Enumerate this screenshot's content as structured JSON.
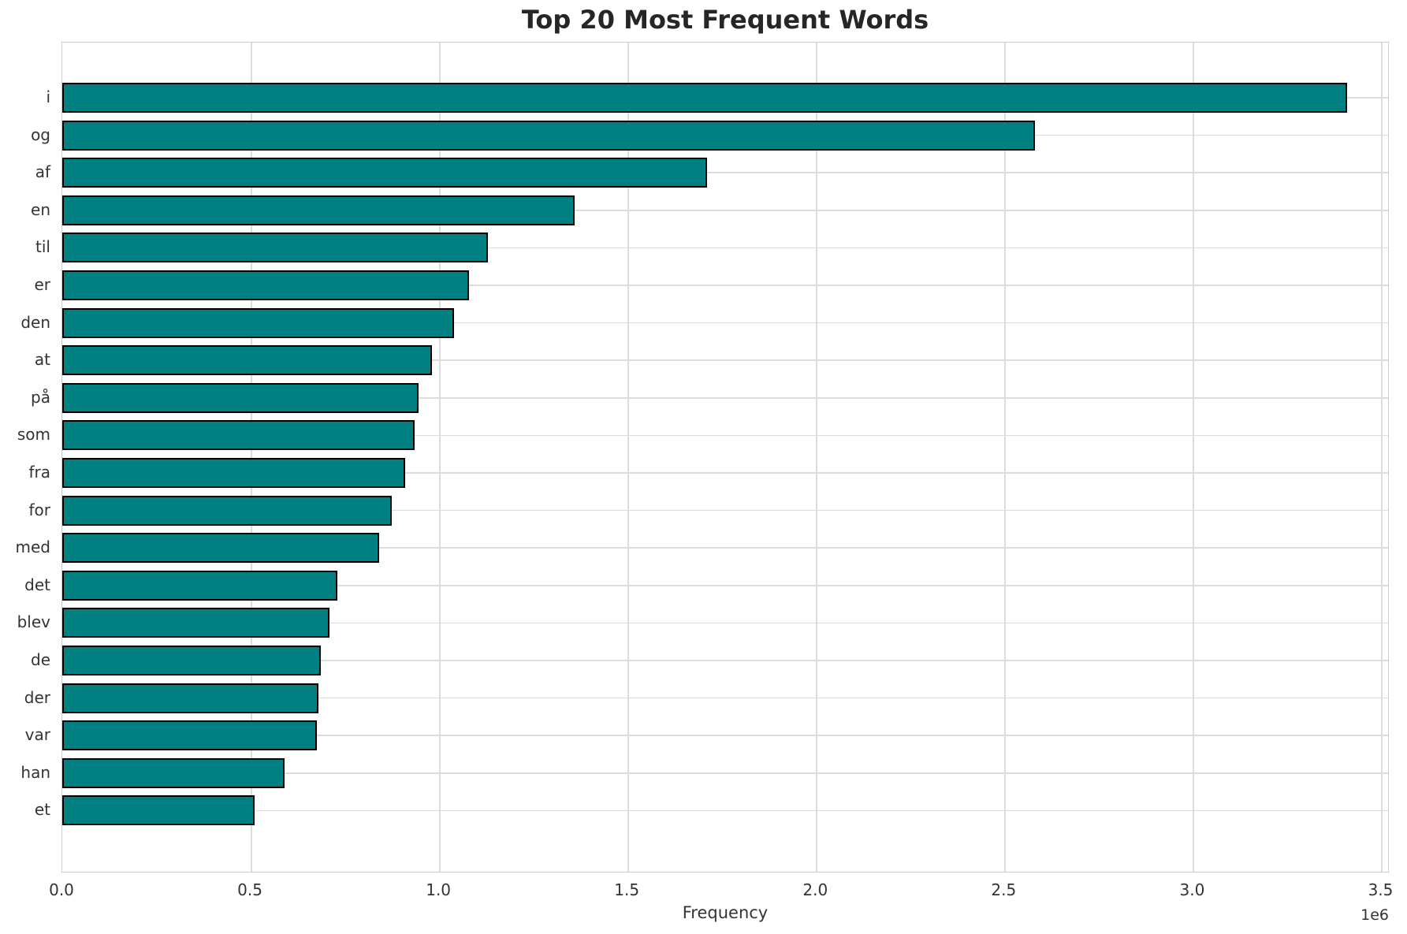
{
  "page_title": "Top 20 Most Frequent Words",
  "chart_data": {
    "type": "bar",
    "orientation": "horizontal",
    "title": "Top 20 Most Frequent Words",
    "xlabel": "Frequency",
    "ylabel": "",
    "categories": [
      "i",
      "og",
      "af",
      "en",
      "til",
      "er",
      "den",
      "at",
      "på",
      "som",
      "fra",
      "for",
      "med",
      "det",
      "blev",
      "de",
      "der",
      "var",
      "han",
      "et"
    ],
    "values": [
      3410000,
      2580000,
      1710000,
      1360000,
      1130000,
      1080000,
      1040000,
      980000,
      945000,
      935000,
      910000,
      875000,
      840000,
      730000,
      710000,
      685000,
      680000,
      675000,
      590000,
      510000
    ],
    "x_tick_labels": [
      "0.0",
      "0.5",
      "1.0",
      "1.5",
      "2.0",
      "2.5",
      "3.0",
      "3.5"
    ],
    "x_tick_values": [
      0,
      500000,
      1000000,
      1500000,
      2000000,
      2500000,
      3000000,
      3500000
    ],
    "axis_offset_label": "1e6",
    "xlim": [
      0,
      3522000
    ],
    "grid": true,
    "legend": false,
    "colors": {
      "bar_fill": "#008080",
      "bar_edge": "#000000",
      "grid": "#dcdcdc",
      "spine": "#cccccc",
      "title_text": "#262626",
      "tick_text": "#333333"
    }
  }
}
